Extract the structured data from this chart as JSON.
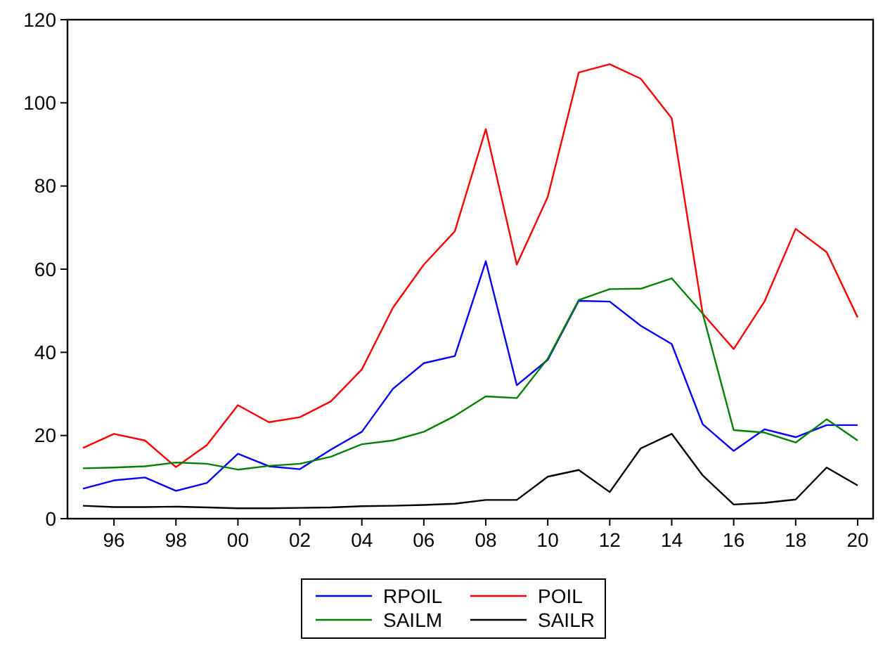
{
  "chart_data": {
    "type": "line",
    "x": [
      1995,
      1996,
      1997,
      1998,
      1999,
      2000,
      2001,
      2002,
      2003,
      2004,
      2005,
      2006,
      2007,
      2008,
      2009,
      2010,
      2011,
      2012,
      2013,
      2014,
      2015,
      2016,
      2017,
      2018,
      2019,
      2020
    ],
    "xlim": [
      1994.5,
      2020.5
    ],
    "xticks": [
      {
        "value": 1996,
        "label": "96"
      },
      {
        "value": 1998,
        "label": "98"
      },
      {
        "value": 2000,
        "label": "00"
      },
      {
        "value": 2002,
        "label": "02"
      },
      {
        "value": 2004,
        "label": "04"
      },
      {
        "value": 2006,
        "label": "06"
      },
      {
        "value": 2008,
        "label": "08"
      },
      {
        "value": 2010,
        "label": "10"
      },
      {
        "value": 2012,
        "label": "12"
      },
      {
        "value": 2014,
        "label": "14"
      },
      {
        "value": 2016,
        "label": "16"
      },
      {
        "value": 2018,
        "label": "18"
      },
      {
        "value": 2020,
        "label": "20"
      }
    ],
    "ylim": [
      0,
      120
    ],
    "yticks": [
      0,
      20,
      40,
      60,
      80,
      100,
      120
    ],
    "grid": false,
    "legend": "bottom",
    "marker": "none",
    "line_style": "solid",
    "series": [
      {
        "name": "RPOIL",
        "color": "#0000ff",
        "values": [
          7.2,
          9.2,
          9.9,
          6.7,
          8.6,
          15.6,
          12.6,
          11.9,
          16.6,
          20.9,
          31.2,
          37.4,
          39.1,
          61.9,
          32.1,
          38.2,
          52.4,
          52.2,
          46.4,
          42.0,
          22.7,
          16.3,
          21.5,
          19.6,
          22.5,
          22.5
        ]
      },
      {
        "name": "POIL",
        "color": "#ff0000",
        "values": [
          17.0,
          20.4,
          18.8,
          12.4,
          17.7,
          27.3,
          23.2,
          24.4,
          28.2,
          35.9,
          50.7,
          61.1,
          69.1,
          93.7,
          61.1,
          77.4,
          107.3,
          109.3,
          105.8,
          96.3,
          49.3,
          40.8,
          52.3,
          69.7,
          64.1,
          48.4
        ]
      },
      {
        "name": "SAILM",
        "color": "#008000",
        "values": [
          12.1,
          12.3,
          12.6,
          13.5,
          13.2,
          11.8,
          12.7,
          13.2,
          14.9,
          17.9,
          18.8,
          20.9,
          24.7,
          29.4,
          29.0,
          38.5,
          52.6,
          55.2,
          55.3,
          57.8,
          49.3,
          21.3,
          20.7,
          18.3,
          23.9,
          18.8
        ]
      },
      {
        "name": "SAILR",
        "color": "#000000",
        "values": [
          3.1,
          2.8,
          2.8,
          2.9,
          2.7,
          2.5,
          2.5,
          2.6,
          2.7,
          3.0,
          3.1,
          3.3,
          3.6,
          4.5,
          4.5,
          10.1,
          11.7,
          6.4,
          16.9,
          20.4,
          10.4,
          3.4,
          3.8,
          4.6,
          12.3,
          8.0
        ]
      }
    ]
  }
}
